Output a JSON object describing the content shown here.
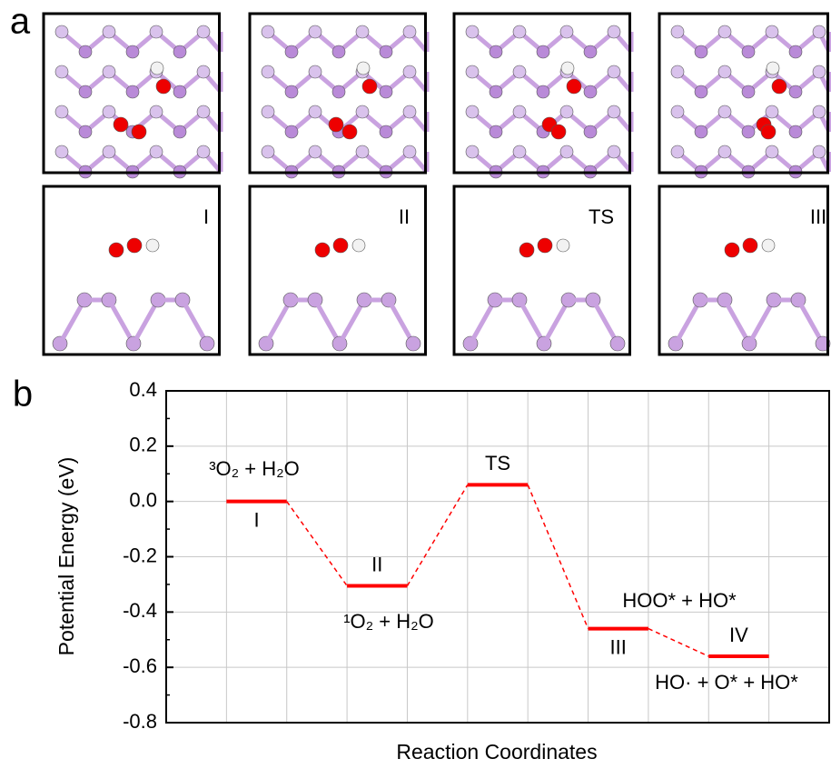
{
  "panel_labels": [
    "a",
    "b"
  ],
  "structure_labels": [
    "I",
    "II",
    "TS",
    "III"
  ],
  "chart_data": {
    "type": "energy_diagram",
    "y_label": "Potential Energy (eV)",
    "x_label": "Reaction Coordinates",
    "categories": [
      "I",
      "II",
      "TS",
      "III",
      "IV"
    ],
    "values": [
      0.0,
      -0.305,
      0.06,
      -0.46,
      -0.56
    ],
    "annotations": [
      "³O₂ + H₂O",
      "¹O₂ + H₂O",
      "HOO* + HO*",
      "HO· + O* + HO*"
    ],
    "color": "#ff0000",
    "ylim": [
      -0.8,
      0.4
    ],
    "yticks": [
      -0.8,
      -0.6,
      -0.4,
      -0.2,
      {
        "value": 0,
        "label": "0.0"
      },
      0.2,
      0.4
    ],
    "grid": true
  }
}
